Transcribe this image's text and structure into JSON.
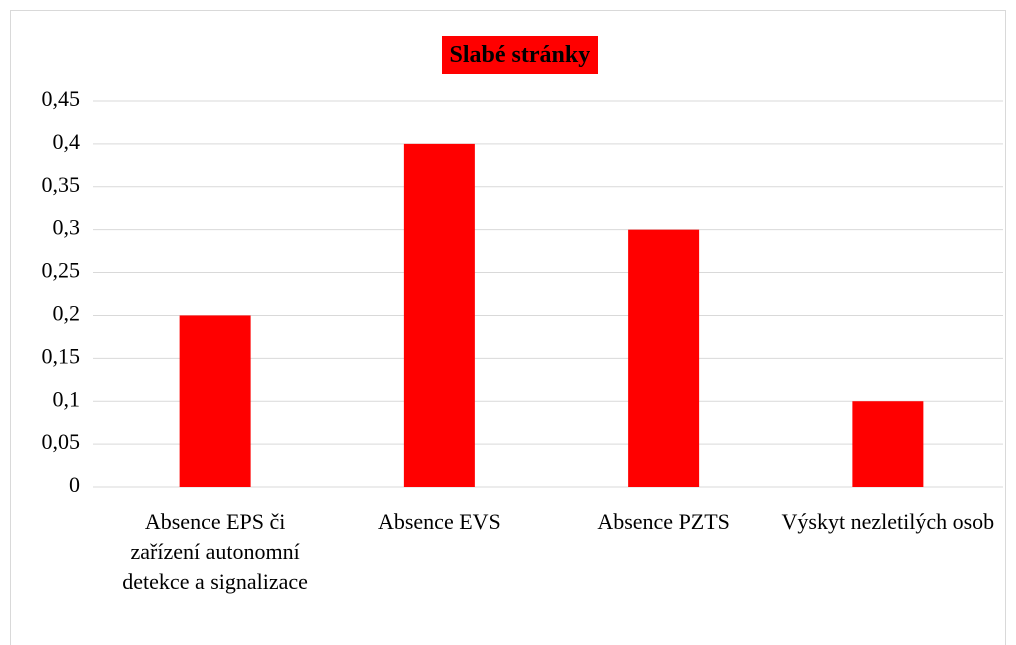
{
  "chart_data": {
    "type": "bar",
    "title": "Slabé stránky",
    "categories": [
      "Absence EPS či zařízení autonomní detekce a signalizace",
      "Absence EVS",
      "Absence PZTS",
      "Výskyt nezletilých osob"
    ],
    "values": [
      0.2,
      0.4,
      0.3,
      0.1
    ],
    "color": "#ff0000",
    "ylim": [
      0,
      0.45
    ],
    "yticks": [
      0,
      {
        "value": 0.05,
        "label": "0,05"
      },
      {
        "value": 0.1,
        "label": "0,1"
      },
      {
        "value": 0.15,
        "label": "0,15"
      },
      {
        "value": 0.2,
        "label": "0,2"
      },
      {
        "value": 0.25,
        "label": "0,25"
      },
      {
        "value": 0.3,
        "label": "0,3"
      },
      {
        "value": 0.35,
        "label": "0,35"
      },
      {
        "value": 0.4,
        "label": "0,4"
      },
      {
        "value": 0.45,
        "label": "0,45"
      }
    ],
    "grid": true
  }
}
